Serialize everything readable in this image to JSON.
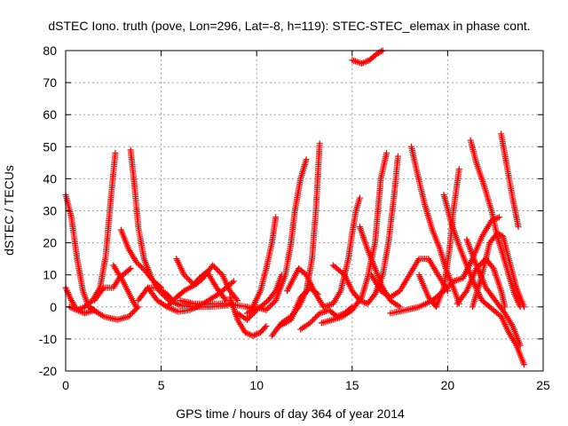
{
  "chart_data": {
    "type": "scatter",
    "title": "dSTEC Iono. truth (pove, Lon=296, Lat=-8, h=119): STEC-STEC_elemax in phase cont.",
    "xlabel": "GPS time / hours of day 364 of year 2014",
    "ylabel": "dSTEC  / TECUs",
    "xlim": [
      0,
      25
    ],
    "ylim": [
      -20,
      80
    ],
    "xticks": [
      "0",
      "5",
      "10",
      "15",
      "20",
      "25"
    ],
    "yticks": [
      "-20",
      "-10",
      "0",
      "10",
      "20",
      "30",
      "40",
      "50",
      "60",
      "70",
      "80"
    ],
    "grid": true,
    "marker": "plus",
    "color": "#ff0000",
    "tracks": [
      [
        [
          0.0,
          35
        ],
        [
          0.3,
          28
        ],
        [
          0.6,
          15
        ],
        [
          0.9,
          5
        ],
        [
          1.2,
          0
        ],
        [
          1.5,
          -1
        ]
      ],
      [
        [
          0.0,
          6
        ],
        [
          0.3,
          2
        ],
        [
          0.6,
          -1
        ],
        [
          1.0,
          -2
        ],
        [
          1.5,
          -1
        ]
      ],
      [
        [
          0.2,
          0
        ],
        [
          0.6,
          -1
        ],
        [
          1.0,
          0
        ],
        [
          1.4,
          2
        ],
        [
          1.8,
          6
        ],
        [
          2.1,
          16
        ],
        [
          2.4,
          36
        ],
        [
          2.6,
          48
        ]
      ],
      [
        [
          1.2,
          0
        ],
        [
          2.0,
          -3
        ],
        [
          2.7,
          -4
        ],
        [
          3.3,
          -3
        ],
        [
          3.8,
          0
        ]
      ],
      [
        [
          1.5,
          2
        ],
        [
          2.0,
          6
        ],
        [
          2.5,
          6
        ],
        [
          2.8,
          9
        ],
        [
          3.2,
          11
        ],
        [
          3.4,
          12
        ]
      ],
      [
        [
          2.5,
          13
        ],
        [
          3.0,
          8
        ],
        [
          3.5,
          2
        ],
        [
          3.7,
          0
        ]
      ],
      [
        [
          3.4,
          49
        ],
        [
          3.6,
          38
        ],
        [
          3.8,
          25
        ],
        [
          4.1,
          15
        ],
        [
          4.5,
          9
        ],
        [
          4.9,
          5
        ],
        [
          5.4,
          2
        ],
        [
          6.0,
          0.5
        ],
        [
          6.6,
          0
        ],
        [
          7.5,
          0
        ],
        [
          8.5,
          0.5
        ]
      ],
      [
        [
          2.9,
          24
        ],
        [
          3.3,
          18
        ],
        [
          3.7,
          14
        ],
        [
          4.2,
          11
        ],
        [
          4.6,
          8
        ],
        [
          5.0,
          6
        ]
      ],
      [
        [
          3.8,
          2
        ],
        [
          4.3,
          6
        ],
        [
          4.8,
          6
        ],
        [
          5.3,
          4
        ],
        [
          5.6,
          2
        ]
      ],
      [
        [
          4.3,
          6
        ],
        [
          4.8,
          2
        ],
        [
          5.3,
          0
        ],
        [
          5.9,
          -1.5
        ],
        [
          6.5,
          -1
        ],
        [
          7.2,
          1
        ],
        [
          8.0,
          4
        ],
        [
          8.8,
          8
        ]
      ],
      [
        [
          5.3,
          0
        ],
        [
          5.8,
          3
        ],
        [
          6.2,
          5
        ],
        [
          6.8,
          7
        ],
        [
          7.2,
          9
        ],
        [
          7.7,
          13
        ],
        [
          8.2,
          10
        ],
        [
          8.6,
          5
        ],
        [
          9.0,
          2
        ]
      ],
      [
        [
          5.8,
          15
        ],
        [
          6.2,
          10
        ],
        [
          6.7,
          7
        ],
        [
          7.0,
          9
        ],
        [
          7.4,
          11
        ],
        [
          7.9,
          6
        ],
        [
          8.4,
          2
        ]
      ],
      [
        [
          6.0,
          2
        ],
        [
          6.7,
          1
        ],
        [
          7.5,
          1
        ],
        [
          8.5,
          1
        ],
        [
          9.5,
          0
        ],
        [
          10.0,
          -1
        ]
      ],
      [
        [
          8.6,
          3
        ],
        [
          9.0,
          -4
        ],
        [
          9.4,
          -8
        ],
        [
          9.8,
          -9
        ],
        [
          10.2,
          -8
        ],
        [
          10.5,
          -6
        ]
      ],
      [
        [
          9.8,
          0
        ],
        [
          10.2,
          5
        ],
        [
          10.5,
          12
        ],
        [
          10.8,
          20
        ],
        [
          11.0,
          28
        ]
      ],
      [
        [
          9.0,
          -2
        ],
        [
          9.5,
          -4
        ],
        [
          10.0,
          -1
        ],
        [
          10.6,
          2
        ],
        [
          11.0,
          5
        ],
        [
          11.3,
          10
        ]
      ],
      [
        [
          9.5,
          -2
        ],
        [
          10.0,
          0
        ],
        [
          10.5,
          -1
        ],
        [
          11.0,
          2
        ],
        [
          11.5,
          10
        ],
        [
          11.8,
          20
        ],
        [
          12.0,
          30
        ],
        [
          12.3,
          40
        ],
        [
          12.6,
          46
        ]
      ],
      [
        [
          10.8,
          -9
        ],
        [
          11.3,
          -5
        ],
        [
          11.8,
          -3
        ],
        [
          12.2,
          0
        ],
        [
          12.6,
          5
        ],
        [
          12.9,
          15
        ],
        [
          13.1,
          30
        ],
        [
          13.3,
          51
        ]
      ],
      [
        [
          11.2,
          -6
        ],
        [
          11.8,
          -4
        ],
        [
          12.3,
          3
        ],
        [
          12.8,
          6
        ],
        [
          13.2,
          4
        ]
      ],
      [
        [
          11.6,
          5
        ],
        [
          12.2,
          12
        ],
        [
          12.6,
          10
        ],
        [
          13.0,
          5
        ],
        [
          13.5,
          0
        ],
        [
          14.0,
          1
        ],
        [
          14.4,
          5
        ],
        [
          14.8,
          15
        ],
        [
          15.0,
          23
        ],
        [
          15.2,
          30
        ],
        [
          15.4,
          34
        ]
      ],
      [
        [
          12.3,
          -7
        ],
        [
          12.8,
          -5
        ],
        [
          13.3,
          -2
        ],
        [
          13.8,
          -1
        ],
        [
          14.2,
          -3
        ],
        [
          14.6,
          -2
        ],
        [
          15.0,
          0
        ]
      ],
      [
        [
          13.4,
          -5
        ],
        [
          14.0,
          -4
        ],
        [
          14.5,
          -3
        ],
        [
          15.0,
          -1
        ],
        [
          15.5,
          3
        ],
        [
          15.8,
          9
        ],
        [
          16.2,
          20
        ],
        [
          16.5,
          40
        ],
        [
          16.8,
          48
        ]
      ],
      [
        [
          14.0,
          13
        ],
        [
          14.6,
          10
        ],
        [
          15.0,
          5
        ],
        [
          15.4,
          2
        ],
        [
          15.8,
          1
        ],
        [
          16.2,
          4
        ],
        [
          16.6,
          10
        ],
        [
          16.9,
          20
        ],
        [
          17.2,
          35
        ],
        [
          17.4,
          47
        ]
      ],
      [
        [
          15.4,
          25
        ],
        [
          15.8,
          18
        ],
        [
          16.2,
          12
        ],
        [
          16.6,
          6
        ],
        [
          17.0,
          2
        ],
        [
          17.5,
          0
        ]
      ],
      [
        [
          15.0,
          77
        ],
        [
          15.5,
          76
        ],
        [
          15.9,
          77
        ],
        [
          16.3,
          79
        ],
        [
          16.6,
          80
        ]
      ],
      [
        [
          16.0,
          10
        ],
        [
          16.5,
          5
        ],
        [
          17.0,
          3
        ],
        [
          17.5,
          5
        ],
        [
          18.0,
          10
        ],
        [
          18.5,
          15
        ],
        [
          19.0,
          15
        ],
        [
          19.5,
          10
        ],
        [
          20.0,
          5
        ]
      ],
      [
        [
          17.0,
          -2
        ],
        [
          17.8,
          -1
        ],
        [
          18.5,
          0
        ],
        [
          19.2,
          2
        ],
        [
          19.8,
          5
        ],
        [
          20.3,
          8
        ],
        [
          20.8,
          9
        ],
        [
          21.3,
          15
        ],
        [
          21.8,
          22
        ],
        [
          22.3,
          27
        ],
        [
          22.7,
          28
        ]
      ],
      [
        [
          18.1,
          50
        ],
        [
          18.4,
          42
        ],
        [
          18.8,
          32
        ],
        [
          19.2,
          24
        ],
        [
          19.6,
          18
        ],
        [
          19.9,
          12
        ],
        [
          20.3,
          6
        ],
        [
          20.6,
          1
        ]
      ],
      [
        [
          18.5,
          10
        ],
        [
          19.0,
          3
        ],
        [
          19.4,
          0
        ],
        [
          19.8,
          6
        ],
        [
          20.1,
          18
        ],
        [
          20.3,
          30
        ],
        [
          20.6,
          43
        ]
      ],
      [
        [
          19.8,
          35
        ],
        [
          20.2,
          26
        ],
        [
          20.6,
          19
        ],
        [
          21.0,
          13
        ],
        [
          21.4,
          7
        ],
        [
          21.8,
          2
        ],
        [
          22.2,
          0
        ],
        [
          22.8,
          -3
        ],
        [
          23.2,
          -8
        ],
        [
          23.6,
          -12
        ],
        [
          24.0,
          -18
        ]
      ],
      [
        [
          20.5,
          1
        ],
        [
          21.0,
          5
        ],
        [
          21.5,
          12
        ],
        [
          22.0,
          15
        ],
        [
          22.4,
          12
        ],
        [
          22.8,
          5
        ],
        [
          23.0,
          0
        ]
      ],
      [
        [
          21.0,
          21
        ],
        [
          21.5,
          13
        ],
        [
          22.0,
          6
        ],
        [
          22.5,
          2
        ],
        [
          23.0,
          -2
        ],
        [
          23.4,
          -6
        ],
        [
          23.8,
          -12
        ]
      ],
      [
        [
          21.2,
          52
        ],
        [
          21.5,
          45
        ],
        [
          21.9,
          38
        ],
        [
          22.3,
          30
        ],
        [
          22.6,
          22
        ],
        [
          22.9,
          16
        ],
        [
          23.2,
          10
        ],
        [
          23.5,
          4
        ],
        [
          23.8,
          0
        ]
      ],
      [
        [
          21.3,
          0
        ],
        [
          21.8,
          10
        ],
        [
          22.2,
          20
        ],
        [
          22.6,
          23
        ],
        [
          22.9,
          22
        ],
        [
          23.2,
          15
        ],
        [
          23.6,
          6
        ],
        [
          24.0,
          0
        ]
      ],
      [
        [
          22.8,
          54
        ],
        [
          23.1,
          44
        ],
        [
          23.4,
          34
        ],
        [
          23.7,
          25
        ]
      ]
    ]
  }
}
